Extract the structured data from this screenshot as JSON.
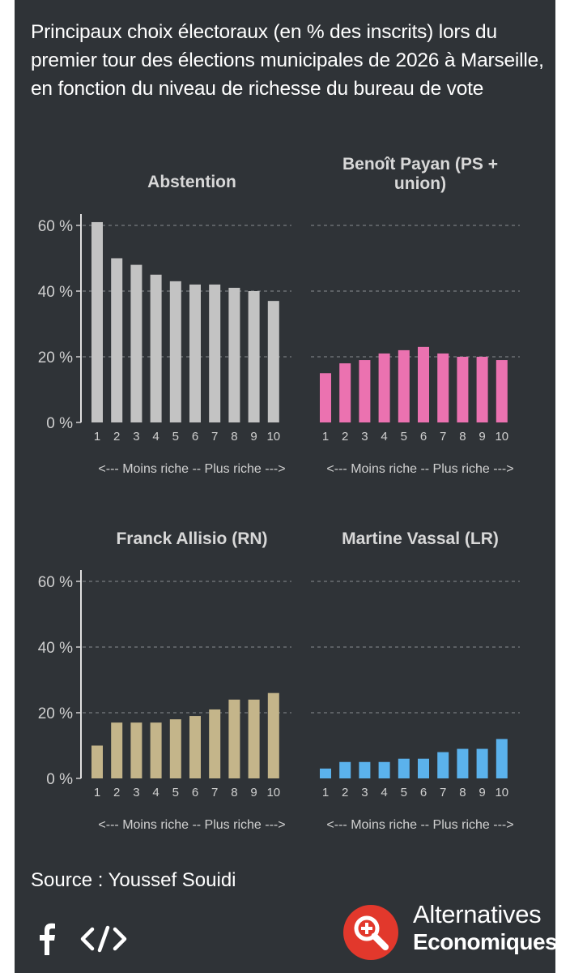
{
  "title": "Principaux choix électoraux (en % des inscrits) lors du premier tour des élections municipales de 2026 à Marseille, en fonction du niveau de richesse du bureau de vote",
  "source": "Source : Youssef Souidi",
  "logo": {
    "line1": "Alternatives",
    "line2": "Economiques",
    "icon": "magnifier-plus-icon"
  },
  "share": {
    "facebook_icon": "facebook-icon",
    "embed_icon": "code-icon"
  },
  "chart_data": [
    {
      "type": "bar",
      "title": [
        "Abstention"
      ],
      "categories": [
        "1",
        "2",
        "3",
        "4",
        "5",
        "6",
        "7",
        "8",
        "9",
        "10"
      ],
      "values": [
        61,
        50,
        48,
        45,
        43,
        42,
        42,
        41,
        40,
        37
      ],
      "ylim": [
        0,
        60
      ],
      "yticks": [
        "0 %",
        "20 %",
        "40 %",
        "60 %"
      ],
      "ytick_values": [
        0,
        20,
        40,
        60
      ],
      "xlabel": "<--- Moins riche -- Plus riche --->",
      "color": "#c3c3c3",
      "show_yaxis": true,
      "position": "top-left"
    },
    {
      "type": "bar",
      "title": [
        "Benoît Payan (PS +",
        "union)"
      ],
      "categories": [
        "1",
        "2",
        "3",
        "4",
        "5",
        "6",
        "7",
        "8",
        "9",
        "10"
      ],
      "values": [
        15,
        18,
        19,
        21,
        22,
        23,
        21,
        20,
        20,
        19
      ],
      "ylim": [
        0,
        60
      ],
      "yticks": [
        "0 %",
        "20 %",
        "40 %",
        "60 %"
      ],
      "ytick_values": [
        0,
        20,
        40,
        60
      ],
      "xlabel": "<--- Moins riche -- Plus riche --->",
      "color": "#eb72b0",
      "show_yaxis": false,
      "position": "top-right"
    },
    {
      "type": "bar",
      "title": [
        "Franck Allisio (RN)"
      ],
      "categories": [
        "1",
        "2",
        "3",
        "4",
        "5",
        "6",
        "7",
        "8",
        "9",
        "10"
      ],
      "values": [
        10,
        17,
        17,
        17,
        18,
        19,
        21,
        24,
        24,
        26
      ],
      "ylim": [
        0,
        60
      ],
      "yticks": [
        "0 %",
        "20 %",
        "40 %",
        "60 %"
      ],
      "ytick_values": [
        0,
        20,
        40,
        60
      ],
      "xlabel": "<--- Moins riche -- Plus riche --->",
      "color": "#c4b58a",
      "show_yaxis": true,
      "position": "bottom-left"
    },
    {
      "type": "bar",
      "title": [
        "Martine Vassal (LR)"
      ],
      "categories": [
        "1",
        "2",
        "3",
        "4",
        "5",
        "6",
        "7",
        "8",
        "9",
        "10"
      ],
      "values": [
        3,
        5,
        5,
        5,
        6,
        6,
        8,
        9,
        9,
        12
      ],
      "ylim": [
        0,
        60
      ],
      "yticks": [
        "0 %",
        "20 %",
        "40 %",
        "60 %"
      ],
      "ytick_values": [
        0,
        20,
        40,
        60
      ],
      "xlabel": "<--- Moins riche -- Plus riche --->",
      "color": "#5bb2ec",
      "show_yaxis": false,
      "position": "bottom-right"
    }
  ]
}
